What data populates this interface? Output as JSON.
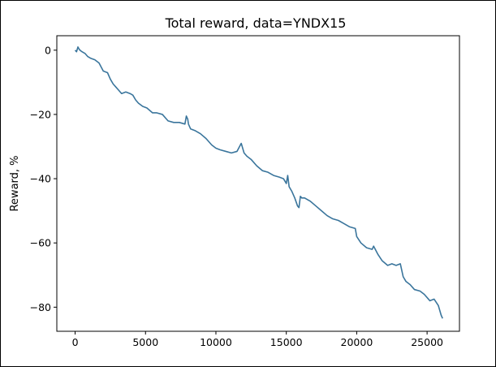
{
  "chart_data": {
    "type": "line",
    "title": "Total reward, data=YNDX15",
    "xlabel": "",
    "ylabel": "Reward, %",
    "xlim": [
      -1300,
      27300
    ],
    "ylim": [
      -87.5,
      4.5
    ],
    "xticks": [
      0,
      5000,
      10000,
      15000,
      20000,
      25000
    ],
    "xtick_labels": [
      "0",
      "5000",
      "10000",
      "15000",
      "20000",
      "25000"
    ],
    "yticks": [
      0,
      -20,
      -40,
      -60,
      -80
    ],
    "ytick_labels": [
      "0",
      "−20",
      "−40",
      "−60",
      "−80"
    ],
    "grid": false,
    "colors": {
      "line": "#3a759c"
    },
    "series": [
      {
        "x": [
          0,
          100,
          200,
          300,
          400,
          500,
          700,
          900,
          1100,
          1400,
          1700,
          2000,
          2300,
          2500,
          2700,
          2900,
          3100,
          3300,
          3600,
          3900,
          4100,
          4300,
          4500,
          4800,
          5100,
          5500,
          5800,
          6200,
          6600,
          7000,
          7400,
          7800,
          7900,
          8000,
          8050,
          8200,
          8500,
          8900,
          9300,
          9700,
          10000,
          10300,
          10700,
          11100,
          11500,
          11800,
          12000,
          12200,
          12500,
          12900,
          13300,
          13700,
          14100,
          14500,
          14800,
          15000,
          15100,
          15200,
          15400,
          15600,
          15800,
          15900,
          16000,
          16100,
          16300,
          16700,
          17100,
          17500,
          17900,
          18300,
          18700,
          19100,
          19500,
          19900,
          20000,
          20300,
          20700,
          21100,
          21200,
          21500,
          21800,
          22200,
          22500,
          22800,
          23100,
          23300,
          23500,
          23800,
          24100,
          24500,
          24800,
          25200,
          25500,
          25800,
          26000,
          26100
        ],
        "y": [
          0,
          -0.5,
          1.0,
          0.2,
          -0.2,
          -0.5,
          -1.0,
          -2.0,
          -2.5,
          -3.0,
          -4.0,
          -6.5,
          -7.0,
          -9.0,
          -10.5,
          -11.5,
          -12.5,
          -13.5,
          -13.0,
          -13.5,
          -14.0,
          -15.5,
          -16.5,
          -17.5,
          -18.0,
          -19.5,
          -19.5,
          -20.0,
          -22.0,
          -22.5,
          -22.5,
          -23.0,
          -20.5,
          -21.5,
          -23.0,
          -24.5,
          -25.0,
          -26.0,
          -27.5,
          -29.5,
          -30.5,
          -31.0,
          -31.5,
          -32.0,
          -31.5,
          -29.0,
          -32.0,
          -33.0,
          -34.0,
          -36.0,
          -37.5,
          -38.0,
          -39.0,
          -39.5,
          -40.0,
          -41.5,
          -39.0,
          -42.5,
          -44.0,
          -46.0,
          -48.5,
          -49.0,
          -45.5,
          -46.0,
          -46.0,
          -47.0,
          -48.5,
          -50.0,
          -51.5,
          -52.5,
          -53.0,
          -54.0,
          -55.0,
          -55.5,
          -58.0,
          -60.0,
          -61.5,
          -62.0,
          -61.0,
          -63.5,
          -65.5,
          -67.0,
          -66.5,
          -67.0,
          -66.5,
          -70.5,
          -72.0,
          -73.0,
          -74.5,
          -75.0,
          -76.0,
          -78.0,
          -77.5,
          -79.5,
          -82.5,
          -83.5
        ]
      }
    ]
  }
}
